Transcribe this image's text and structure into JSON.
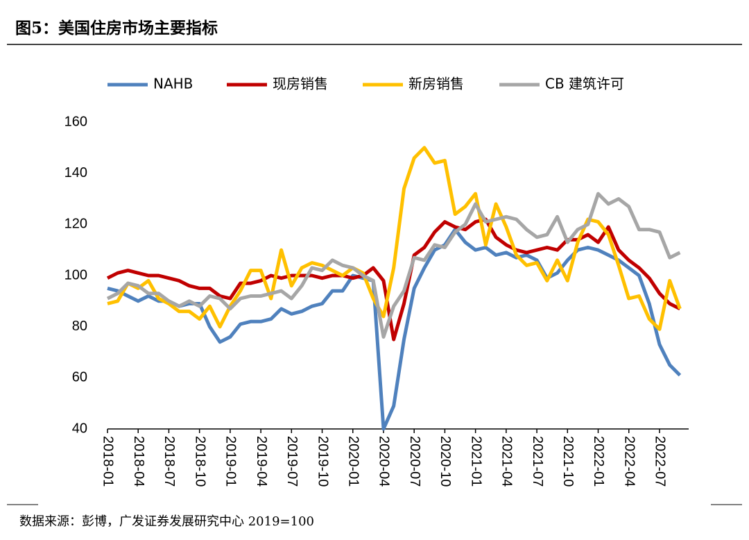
{
  "chart_data": {
    "type": "line",
    "title": "图5：美国住房市场主要指标",
    "note": "数据来源：彭博，广发证券发展研究中心 2019=100",
    "categories": [
      "2018-01",
      null,
      null,
      "2018-04",
      null,
      null,
      "2018-07",
      null,
      null,
      "2018-10",
      null,
      null,
      "2019-01",
      null,
      null,
      "2019-04",
      null,
      null,
      "2019-07",
      null,
      null,
      "2019-10",
      null,
      null,
      "2020-01",
      null,
      null,
      "2020-04",
      null,
      null,
      "2020-07",
      null,
      null,
      "2020-10",
      null,
      null,
      "2021-01",
      null,
      null,
      "2021-04",
      null,
      null,
      "2021-07",
      null,
      null,
      "2021-10",
      null,
      null,
      "2022-01",
      null,
      null,
      "2022-04",
      null,
      null,
      "2022-07",
      null,
      null
    ],
    "series": [
      {
        "name": "NAHB",
        "color": "#4f81bd",
        "values": [
          95,
          94,
          92,
          90,
          92,
          90,
          90,
          88,
          89,
          89,
          80,
          74,
          76,
          81,
          82,
          82,
          83,
          87,
          85,
          86,
          88,
          89,
          94,
          94,
          100,
          99,
          98,
          40,
          49,
          75,
          95,
          103,
          110,
          112,
          118,
          113,
          110,
          111,
          108,
          109,
          107,
          108,
          106,
          99,
          101,
          106,
          110,
          111,
          110,
          108,
          106,
          103,
          100,
          89,
          73,
          65,
          61
        ]
      },
      {
        "name": "现房销售",
        "color": "#c00000",
        "values": [
          99,
          101,
          102,
          101,
          100,
          100,
          99,
          98,
          96,
          95,
          95,
          92,
          91,
          97,
          97,
          98,
          100,
          99,
          100,
          100,
          100,
          99,
          100,
          100,
          99,
          100,
          103,
          98,
          75,
          89,
          108,
          111,
          117,
          121,
          119,
          118,
          121,
          122,
          115,
          112,
          110,
          109,
          110,
          111,
          110,
          114,
          114,
          116,
          113,
          119,
          110,
          106,
          103,
          99,
          93,
          89,
          87
        ]
      },
      {
        "name": "新房销售",
        "color": "#ffc000",
        "values": [
          89,
          90,
          97,
          95,
          98,
          91,
          89,
          86,
          86,
          83,
          88,
          80,
          88,
          94,
          102,
          102,
          91,
          110,
          96,
          103,
          105,
          104,
          102,
          100,
          103,
          101,
          91,
          84,
          103,
          134,
          146,
          150,
          144,
          145,
          124,
          127,
          132,
          112,
          128,
          119,
          108,
          104,
          105,
          98,
          106,
          98,
          113,
          122,
          121,
          116,
          104,
          91,
          92,
          83,
          79,
          98,
          87
        ]
      },
      {
        "name": "CB 建筑许可",
        "color": "#a6a6a6",
        "values": [
          91,
          93,
          97,
          96,
          93,
          93,
          90,
          88,
          90,
          88,
          92,
          91,
          87,
          91,
          92,
          92,
          93,
          94,
          91,
          96,
          103,
          102,
          106,
          104,
          103,
          100,
          98,
          76,
          88,
          94,
          107,
          106,
          112,
          111,
          117,
          120,
          128,
          121,
          122,
          123,
          122,
          118,
          115,
          116,
          123,
          113,
          118,
          120,
          132,
          128,
          130,
          127,
          118,
          118,
          117,
          107,
          109
        ]
      }
    ],
    "ylim": [
      40,
      160
    ],
    "yticks": [
      40,
      60,
      80,
      100,
      120,
      140,
      160
    ],
    "grid": false,
    "legend": "top"
  }
}
